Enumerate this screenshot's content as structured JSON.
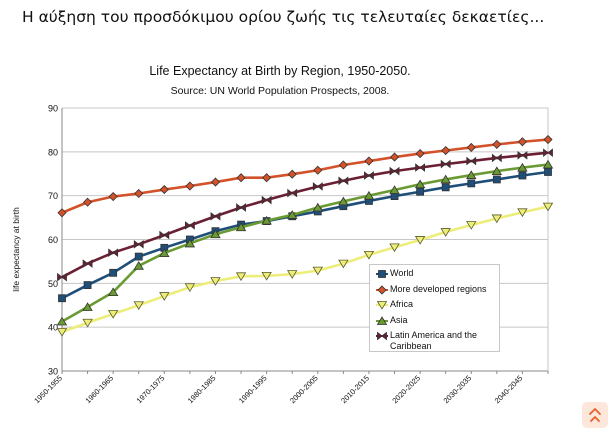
{
  "slide_title": "Η αύξηση του προσδόκιμου ορίου ζωής τις τελευταίες δεκαετίες...",
  "colors": {
    "world": "#1f4e79",
    "more_developed": "#d4522a",
    "africa": "#eded7a",
    "asia": "#6a9a32",
    "latin_america": "#6b1f33",
    "grid": "#c7c7c7",
    "nav_icon": "#e8602b"
  },
  "nav_icon": "directional-arrows-icon",
  "chart_data": {
    "type": "line",
    "title": "Life Expectancy at Birth by Region, 1950-2050.",
    "subtitle": "Source: UN World Population Prospects, 2008.",
    "xlabel": "",
    "ylabel": "life expectancy at birth",
    "ylim": [
      30,
      90
    ],
    "yticks": [
      30,
      40,
      50,
      60,
      70,
      80,
      90
    ],
    "grid": true,
    "legend_position": "bottom-right",
    "categories": [
      "1950-1955",
      "1955-1960",
      "1960-1965",
      "1965-1970",
      "1970-1975",
      "1975-1980",
      "1980-1985",
      "1985-1990",
      "1990-1995",
      "1995-2000",
      "2000-2005",
      "2005-2010",
      "2010-2015",
      "2015-2020",
      "2020-2025",
      "2025-2030",
      "2030-2035",
      "2035-2040",
      "2040-2045",
      "2045-2050"
    ],
    "tick_labels": [
      "1950-1955",
      "1960-1965",
      "1970-1975",
      "1980-1985",
      "1990-1995",
      "2000-2005",
      "2010-2015",
      "2020-2025",
      "2030-2035",
      "2040-2045"
    ],
    "series": [
      {
        "name": "World",
        "color": "#1f4e79",
        "marker": "square",
        "values": [
          46.6,
          49.6,
          52.4,
          56.1,
          58.1,
          60.0,
          61.9,
          63.4,
          64.2,
          65.3,
          66.4,
          67.6,
          68.8,
          69.9,
          70.9,
          71.9,
          72.8,
          73.7,
          74.6,
          75.4
        ]
      },
      {
        "name": "More developed regions",
        "color": "#d4522a",
        "marker": "diamond",
        "values": [
          66.1,
          68.5,
          69.8,
          70.5,
          71.4,
          72.2,
          73.1,
          74.1,
          74.1,
          74.9,
          75.8,
          77.0,
          77.9,
          78.8,
          79.6,
          80.3,
          81.0,
          81.7,
          82.3,
          82.8
        ]
      },
      {
        "name": "Africa",
        "color": "#eded7a",
        "marker": "triangle-down",
        "values": [
          38.9,
          41.0,
          43.0,
          45.0,
          47.1,
          49.1,
          50.5,
          51.6,
          51.7,
          52.1,
          52.9,
          54.5,
          56.5,
          58.2,
          59.9,
          61.7,
          63.3,
          64.8,
          66.2,
          67.5
        ]
      },
      {
        "name": "Asia",
        "color": "#6a9a32",
        "marker": "triangle-up",
        "values": [
          41.3,
          44.6,
          48.0,
          54.0,
          56.9,
          59.1,
          61.2,
          62.8,
          64.3,
          65.6,
          67.3,
          68.7,
          70.0,
          71.3,
          72.6,
          73.7,
          74.7,
          75.6,
          76.4,
          77.1
        ]
      },
      {
        "name": "Latin America and the Caribbean",
        "color": "#6b1f33",
        "marker": "bowtie",
        "values": [
          51.4,
          54.5,
          57.0,
          58.9,
          61.0,
          63.2,
          65.3,
          67.3,
          69.0,
          70.6,
          72.1,
          73.4,
          74.6,
          75.6,
          76.4,
          77.2,
          77.9,
          78.6,
          79.2,
          79.8
        ]
      }
    ]
  }
}
